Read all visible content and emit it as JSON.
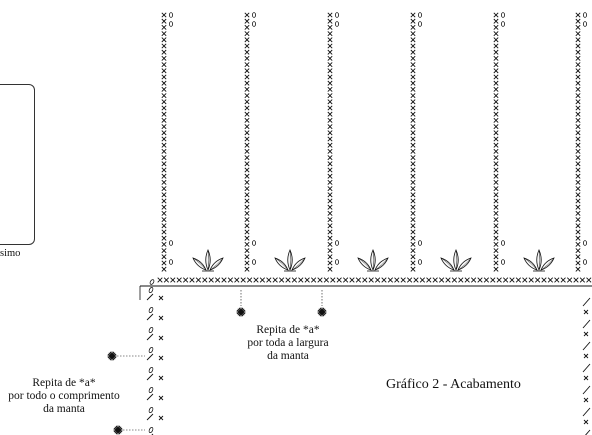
{
  "chart_title": "Gráfico 2 - Acabamento",
  "side_note": {
    "visible_fragment": "simo"
  },
  "repeat_width_note": [
    "Repita de *a*",
    "por toda a largura",
    "da manta"
  ],
  "repeat_length_note": [
    "Repita de *a*",
    "por todo o comprimento",
    "da manta"
  ],
  "legend_symbols": {
    "repeat_marker": "asterisk-star",
    "single_crochet": "x",
    "chain": "oval",
    "fan_motif": "puff-stitch-fan"
  },
  "colors": {
    "ink": "#111111",
    "background": "#ffffff"
  }
}
